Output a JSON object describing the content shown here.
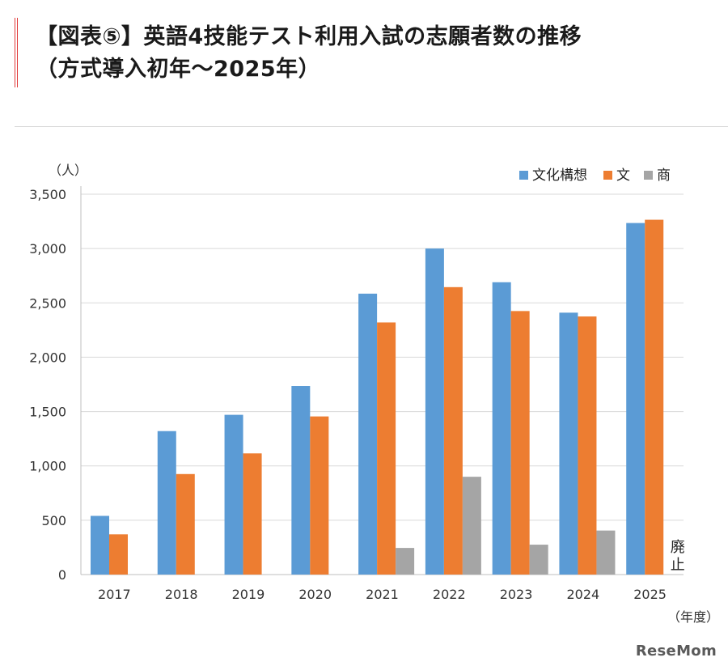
{
  "title_line1": "【図表⑤】英語4技能テスト利用入試の志願者数の推移",
  "title_line2": "（方式導入初年〜2025年）",
  "watermark": "ReseMom",
  "chart_data": {
    "type": "bar",
    "ylabel": "（人）",
    "xlabel": "（年度）",
    "ylim": [
      0,
      3500
    ],
    "yticks": [
      0,
      500,
      1000,
      1500,
      2000,
      2500,
      3000,
      3500
    ],
    "ytick_labels": [
      "0",
      "500",
      "1,000",
      "1,500",
      "2,000",
      "2,500",
      "3,000",
      "3,500"
    ],
    "grid": true,
    "legend_position": "top-right",
    "categories": [
      "2017",
      "2018",
      "2019",
      "2020",
      "2021",
      "2022",
      "2023",
      "2024",
      "2025"
    ],
    "series": [
      {
        "name": "文化構想",
        "color": "#5b9bd5",
        "values": [
          540,
          1320,
          1470,
          1735,
          2585,
          3000,
          2690,
          2410,
          3235
        ]
      },
      {
        "name": "文",
        "color": "#ed7d31",
        "values": [
          370,
          925,
          1115,
          1455,
          2320,
          2645,
          2425,
          2375,
          3265
        ]
      },
      {
        "name": "商",
        "color": "#a5a5a5",
        "values": [
          null,
          null,
          null,
          null,
          245,
          900,
          275,
          405,
          null
        ]
      }
    ],
    "annotations": [
      {
        "category": "2025",
        "series": "商",
        "text": "廃止"
      }
    ]
  }
}
